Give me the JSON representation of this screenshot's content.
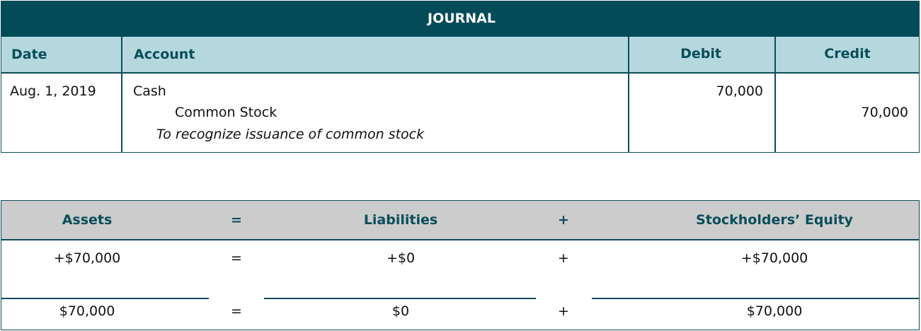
{
  "journal": {
    "title": "JOURNAL",
    "headers": [
      "Date",
      "Account",
      "Debit",
      "Credit"
    ],
    "entry": {
      "date": "Aug. 1, 2019",
      "debit_account": "Cash",
      "credit_account": "Common Stock",
      "description": "To recognize issuance of common stock",
      "debit": "70,000",
      "credit": "70,000"
    }
  },
  "equation": {
    "headers": [
      "Assets",
      "=",
      "Liabilities",
      "+",
      "Stockholders’ Equity"
    ],
    "rows": [
      [
        "+$70,000",
        "=",
        "+$0",
        "+",
        "+$70,000"
      ],
      [
        "$70,000",
        "=",
        "$0",
        "+",
        "$70,000"
      ]
    ]
  }
}
